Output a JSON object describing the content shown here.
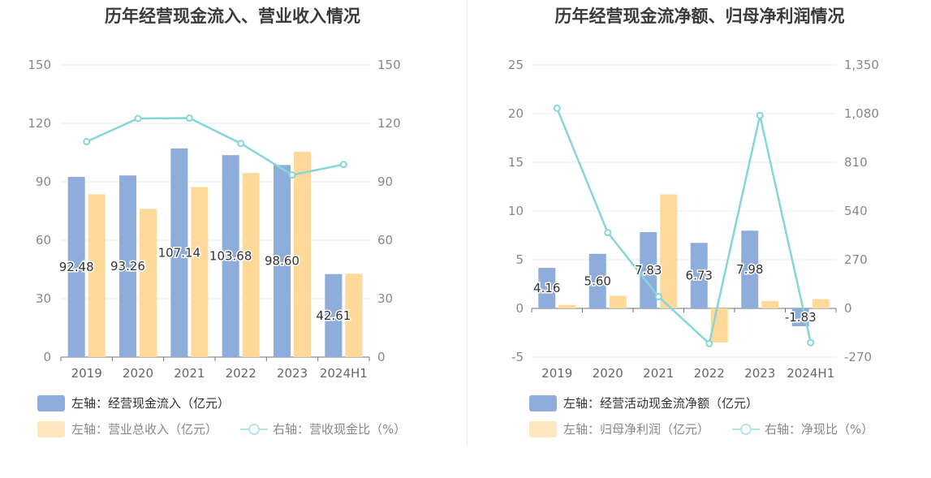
{
  "colors": {
    "cash": "#8eaddb",
    "revenue": "#fed99a",
    "ratio": "#86d5d8",
    "grid": "#e6ebf5",
    "axis": "#6e7079"
  },
  "charts": [
    {
      "title": "历年经营现金流入、营业收入情况",
      "legend": [
        {
          "text": "左轴：经营现金流入（亿元）",
          "style": "bar",
          "color": "#8eaddb"
        },
        {
          "text": "左轴：营业总收入（亿元）",
          "style": "bar",
          "color": "#fed99a"
        },
        {
          "text": "右轴：营收现金比（%）",
          "style": "line",
          "color": "#86d5d8"
        }
      ]
    },
    {
      "title": "历年经营现金流净额、归母净利润情况",
      "legend": [
        {
          "text": "左轴：经营活动现金流净额（亿元）",
          "style": "bar",
          "color": "#8eaddb"
        },
        {
          "text": "左轴：归母净利润（亿元）",
          "style": "bar",
          "color": "#fed99a"
        },
        {
          "text": "右轴：净现比（%）",
          "style": "line",
          "color": "#86d5d8"
        }
      ]
    }
  ],
  "chart_data": [
    {
      "type": "bar",
      "title": "历年经营现金流入、营业收入情况",
      "categories": [
        "2019",
        "2020",
        "2021",
        "2022",
        "2023",
        "2024H1"
      ],
      "left_axis": {
        "ticks": [
          "0",
          "30",
          "60",
          "90",
          "120",
          "150"
        ],
        "ylim": [
          0,
          150
        ]
      },
      "right_axis": {
        "ticks": [
          "0",
          "30",
          "60",
          "90",
          "120",
          "150"
        ],
        "ylim": [
          0,
          150
        ]
      },
      "series": [
        {
          "name": "左轴：经营现金流入（亿元）",
          "type": "bar",
          "axis": "left",
          "values": [
            92.48,
            93.26,
            107.14,
            103.68,
            98.6,
            42.61
          ],
          "labels": [
            "92.48",
            "93.26",
            "107.14",
            "103.68",
            "98.60",
            "42.61"
          ]
        },
        {
          "name": "左轴：营业总收入（亿元）",
          "type": "bar",
          "axis": "left",
          "values": [
            83.6,
            76.1,
            87.3,
            94.5,
            105.4,
            42.8
          ]
        },
        {
          "name": "右轴：营收现金比（%）",
          "type": "line",
          "axis": "right",
          "values": [
            110.6,
            122.5,
            122.7,
            109.7,
            93.5,
            98.9
          ]
        }
      ],
      "grid": true,
      "legend_position": "bottom-left"
    },
    {
      "type": "bar",
      "title": "历年经营现金流净额、归母净利润情况",
      "categories": [
        "2019",
        "2020",
        "2021",
        "2022",
        "2023",
        "2024H1"
      ],
      "left_axis": {
        "ticks": [
          "-5",
          "0",
          "5",
          "10",
          "15",
          "20",
          "25"
        ],
        "ylim": [
          -5,
          25
        ]
      },
      "right_axis": {
        "ticks": [
          "-270",
          "0",
          "270",
          "540",
          "810",
          "1,080",
          "1,350"
        ],
        "ylim": [
          -270,
          1350
        ]
      },
      "series": [
        {
          "name": "左轴：经营活动现金流净额（亿元）",
          "type": "bar",
          "axis": "left",
          "values": [
            4.16,
            5.6,
            7.83,
            6.73,
            7.98,
            -1.83
          ],
          "labels": [
            "4.16",
            "5.60",
            "7.83",
            "6.73",
            "7.98",
            "-1.83"
          ]
        },
        {
          "name": "左轴：归母净利润（亿元）",
          "type": "bar",
          "axis": "left",
          "values": [
            0.35,
            1.3,
            11.7,
            -3.5,
            0.75,
            0.95
          ]
        },
        {
          "name": "右轴：净现比（%）",
          "type": "line",
          "axis": "right",
          "values": [
            1110,
            420,
            65,
            -195,
            1070,
            -190
          ]
        }
      ],
      "grid": true,
      "legend_position": "bottom-left"
    }
  ]
}
